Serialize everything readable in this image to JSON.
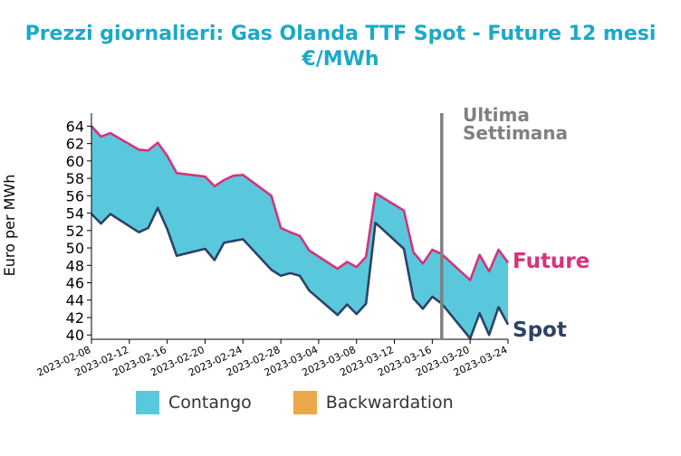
{
  "colors": {
    "title": "#1aa9c9",
    "future": "#d6337a",
    "spot": "#2c4266",
    "contango": "#5ac8dc",
    "backwardation": "#eaa84a",
    "marker": "#808080"
  },
  "chart_data": {
    "type": "area",
    "title": "Prezzi giornalieri: Gas Olanda TTF Spot - Future 12 mesi",
    "subtitle": "€/MWh",
    "ylabel": "Euro per MWh",
    "ylim": [
      39.5,
      65.5
    ],
    "yticks": [
      40,
      42,
      44,
      46,
      48,
      50,
      52,
      54,
      56,
      58,
      60,
      62,
      64
    ],
    "xlim": [
      "2023-02-08",
      "2023-03-24"
    ],
    "xticks": [
      "2023-02-08",
      "2023-02-12",
      "2023-02-16",
      "2023-02-20",
      "2023-02-24",
      "2023-02-28",
      "2023-03-04",
      "2023-03-08",
      "2023-03-12",
      "2023-03-16",
      "2023-03-20",
      "2023-03-24"
    ],
    "grid": false,
    "x": [
      "2023-02-08",
      "2023-02-09",
      "2023-02-10",
      "2023-02-13",
      "2023-02-14",
      "2023-02-15",
      "2023-02-16",
      "2023-02-17",
      "2023-02-20",
      "2023-02-21",
      "2023-02-22",
      "2023-02-23",
      "2023-02-24",
      "2023-02-27",
      "2023-02-28",
      "2023-03-01",
      "2023-03-02",
      "2023-03-03",
      "2023-03-06",
      "2023-03-07",
      "2023-03-08",
      "2023-03-09",
      "2023-03-10",
      "2023-03-13",
      "2023-03-14",
      "2023-03-15",
      "2023-03-16",
      "2023-03-17",
      "2023-03-20",
      "2023-03-21",
      "2023-03-22",
      "2023-03-23",
      "2023-03-24"
    ],
    "series": [
      {
        "name": "Future",
        "values": [
          64.0,
          62.8,
          63.2,
          61.3,
          61.2,
          62.1,
          60.6,
          58.6,
          58.2,
          57.1,
          57.8,
          58.3,
          58.4,
          56.0,
          52.3,
          51.8,
          51.4,
          49.7,
          47.6,
          48.4,
          47.8,
          49.0,
          56.3,
          54.3,
          49.5,
          48.2,
          49.8,
          49.3,
          46.3,
          49.2,
          47.3,
          49.8,
          48.3
        ]
      },
      {
        "name": "Spot",
        "values": [
          53.9,
          52.8,
          53.9,
          51.8,
          52.3,
          54.6,
          52.2,
          49.1,
          49.9,
          48.6,
          50.6,
          50.8,
          51.0,
          47.5,
          46.8,
          47.1,
          46.8,
          45.1,
          42.3,
          43.5,
          42.4,
          43.6,
          52.9,
          49.9,
          44.2,
          43.0,
          44.4,
          43.6,
          39.6,
          42.5,
          40.0,
          43.2,
          41.2
        ]
      }
    ],
    "fills": [
      {
        "name": "Contango"
      },
      {
        "name": "Backwardation"
      }
    ],
    "vline": {
      "x": "2023-03-17",
      "label_line1": "Ultima",
      "label_line2": "Settimana"
    }
  }
}
